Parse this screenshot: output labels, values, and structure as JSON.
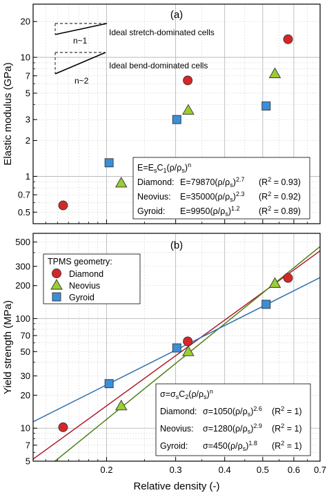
{
  "figure": {
    "xlabel": "Relative density (-)",
    "xticks": [
      {
        "v": 0.2,
        "label": "0.2"
      },
      {
        "v": 0.3,
        "label": "0.3"
      },
      {
        "v": 0.4,
        "label": "0.4"
      },
      {
        "v": 0.5,
        "label": "0.5"
      },
      {
        "v": 0.6,
        "label": "0.6"
      },
      {
        "v": 0.7,
        "label": "0.7"
      }
    ],
    "colors": {
      "diamond": "#d62728",
      "neovius": "#9acd32",
      "gyroid": "#3b8fd6",
      "diamond_line": "#b01c2e",
      "neovius_line": "#6fa81a",
      "gyroid_line": "#2c6fb0",
      "neovius_line_b": "#4f7f16"
    }
  },
  "chart_data": [
    {
      "type": "scatter",
      "panel_label": "(a)",
      "ylabel": "Elastic modulus (GPa)",
      "xscale": "log",
      "yscale": "log",
      "xlim": [
        0.13,
        0.7
      ],
      "ylim": [
        0.4,
        28
      ],
      "grid": true,
      "yticks": [
        {
          "v": 0.5,
          "label": "0.5"
        },
        {
          "v": 0.7,
          "label": "0.7"
        },
        {
          "v": 1,
          "label": "1"
        },
        {
          "v": 2,
          "label": "2"
        },
        {
          "v": 3,
          "label": "3"
        },
        {
          "v": 5,
          "label": "5"
        },
        {
          "v": 7,
          "label": "7"
        },
        {
          "v": 10,
          "label": "10"
        },
        {
          "v": 20,
          "label": "20"
        }
      ],
      "series": [
        {
          "key": "diamond",
          "marker": "circle",
          "x": [
            0.155,
            0.322,
            0.58
          ],
          "y": [
            0.57,
            6.4,
            14.2
          ]
        },
        {
          "key": "neovius",
          "marker": "triangle",
          "x": [
            0.218,
            0.323,
            0.537
          ],
          "y": [
            0.88,
            3.6,
            7.3
          ]
        },
        {
          "key": "gyroid",
          "marker": "square",
          "x": [
            0.203,
            0.302,
            0.51
          ],
          "y": [
            1.3,
            3.0,
            3.9
          ]
        }
      ],
      "fits": [
        {
          "key": "diamond",
          "C": 79870,
          "n": 2.7
        },
        {
          "key": "neovius",
          "C": 35000,
          "n": 2.3
        },
        {
          "key": "gyroid",
          "C": 9950,
          "n": 1.2
        }
      ],
      "inset": {
        "stretch_n": "n~1",
        "stretch_label": "Ideal stretch-dominated cells",
        "bend_n": "n~2",
        "bend_label": "Ideal bend-dominated cells"
      },
      "equation_box": {
        "head": {
          "a": "E=E",
          "b": "s",
          "c": "C",
          "d": "1",
          "e": "(ρ/ρ",
          "f": "s",
          "g": ")",
          "h": "n"
        },
        "rows": [
          {
            "name": "Diamond:",
            "pre": "E=79870(ρ/ρ",
            "sub": "s",
            "post": ")",
            "exp": "2.7",
            "r2a": "(R",
            "r2b": "2",
            "r2c": " = 0.93)"
          },
          {
            "name": "Neovius:",
            "pre": "E=35000(ρ/ρ",
            "sub": "s",
            "post": ")",
            "exp": "2.3",
            "r2a": "(R",
            "r2b": "2",
            "r2c": " = 0.92)"
          },
          {
            "name": "Gyroid:",
            "pre": "E=9950(ρ/ρ",
            "sub": "s",
            "post": ")",
            "exp": "1.2",
            "r2a": "(R",
            "r2b": "2",
            "r2c": " = 0.89)"
          }
        ]
      }
    },
    {
      "type": "scatter",
      "panel_label": "(b)",
      "ylabel": "Yield strength (MPa)",
      "xscale": "log",
      "yscale": "log",
      "xlim": [
        0.13,
        0.7
      ],
      "ylim": [
        5,
        600
      ],
      "grid": true,
      "yticks": [
        {
          "v": 5,
          "label": "5"
        },
        {
          "v": 7,
          "label": "7"
        },
        {
          "v": 10,
          "label": "10"
        },
        {
          "v": 20,
          "label": "20"
        },
        {
          "v": 30,
          "label": "30"
        },
        {
          "v": 50,
          "label": "50"
        },
        {
          "v": 70,
          "label": "70"
        },
        {
          "v": 100,
          "label": "100"
        },
        {
          "v": 200,
          "label": "200"
        },
        {
          "v": 300,
          "label": "300"
        },
        {
          "v": 500,
          "label": "500"
        }
      ],
      "legend": {
        "title": "TPMS geometry:",
        "items": [
          {
            "key": "diamond",
            "marker": "circle",
            "label": "Diamond"
          },
          {
            "key": "neovius",
            "marker": "triangle",
            "label": "Neovius"
          },
          {
            "key": "gyroid",
            "marker": "square",
            "label": "Gyroid"
          }
        ]
      },
      "series": [
        {
          "key": "diamond",
          "marker": "circle",
          "x": [
            0.155,
            0.322,
            0.58
          ],
          "y": [
            10.2,
            62,
            235
          ]
        },
        {
          "key": "neovius",
          "marker": "triangle",
          "x": [
            0.218,
            0.323,
            0.537
          ],
          "y": [
            16,
            50,
            210
          ]
        },
        {
          "key": "gyroid",
          "marker": "square",
          "x": [
            0.203,
            0.302,
            0.51
          ],
          "y": [
            25.5,
            54,
            135
          ]
        }
      ],
      "fits": [
        {
          "key": "diamond",
          "C": 1050,
          "n": 2.6
        },
        {
          "key": "neovius_b",
          "C": 1280,
          "n": 2.9
        },
        {
          "key": "gyroid",
          "C": 450,
          "n": 1.8
        }
      ],
      "equation_box": {
        "head": {
          "a": "σ=σ",
          "b": "s",
          "c": "C",
          "d": "2",
          "e": "(ρ/ρ",
          "f": "s",
          "g": ")",
          "h": "n"
        },
        "rows": [
          {
            "name": "Diamond:",
            "pre": "σ=1050(ρ/ρ",
            "sub": "s",
            "post": ")",
            "exp": "2.6",
            "r2a": "(R",
            "r2b": "2",
            "r2c": " = 1)"
          },
          {
            "name": "Neovius:",
            "pre": "σ=1280(ρ/ρ",
            "sub": "s",
            "post": ")",
            "exp": "2.9",
            "r2a": "(R",
            "r2b": "2",
            "r2c": " = 1)"
          },
          {
            "name": "Gyroid:",
            "pre": "σ=450(ρ/ρ",
            "sub": "s",
            "post": ")",
            "exp": "1.8",
            "r2a": "(R",
            "r2b": "2",
            "r2c": " = 1)"
          }
        ]
      }
    }
  ]
}
